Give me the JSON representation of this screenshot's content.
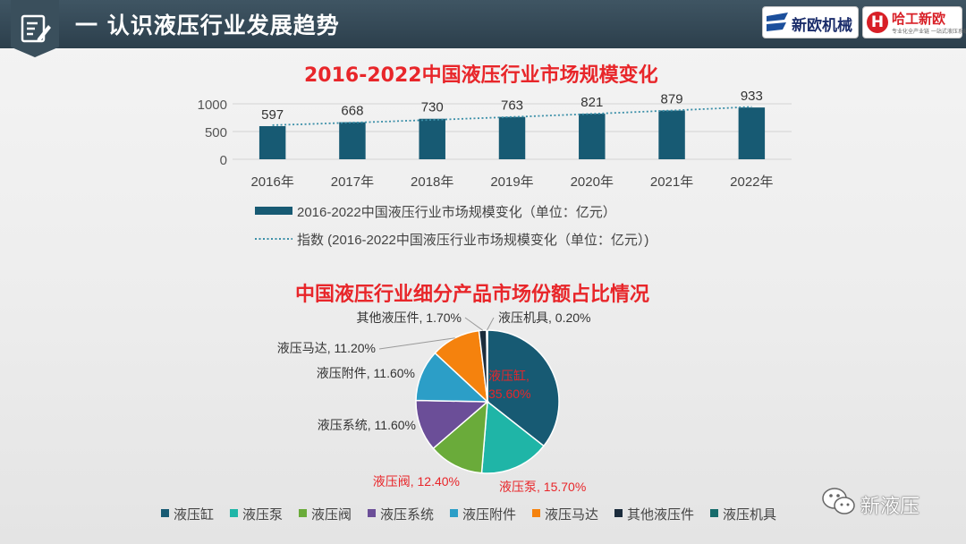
{
  "header": {
    "title": "一 认识液压行业发展趋势",
    "logos": [
      {
        "name": "新欧机械",
        "badge": ""
      },
      {
        "name": "哈工新欧",
        "badge": "H",
        "tagline": "专业化全产业链 一站式液压系统"
      }
    ]
  },
  "icons": {
    "header_icon": "edit-note-icon",
    "watermark_icon": "wechat-icon"
  },
  "watermark": {
    "text": "新液压"
  },
  "colors": {
    "header_bg": "#2f4350",
    "title_red": "#e8262a",
    "bar": "#175a73",
    "trend": "#3b8fa8"
  },
  "chart_data": [
    {
      "type": "bar",
      "title": "2016-2022中国液压行业市场规模变化",
      "categories": [
        "2016年",
        "2017年",
        "2018年",
        "2019年",
        "2020年",
        "2021年",
        "2022年"
      ],
      "series": [
        {
          "name": "2016-2022中国液压行业市场规模变化（单位：亿元）",
          "values": [
            597,
            668,
            730,
            763,
            821,
            879,
            933
          ],
          "color": "#175a73"
        }
      ],
      "trendline": {
        "name": "指数 (2016-2022中国液压行业市场规模变化（单位：亿元）)",
        "type": "exponential",
        "style": "dotted",
        "color": "#3b8fa8"
      },
      "yticks": [
        0,
        500,
        1000
      ],
      "ylim": [
        0,
        1000
      ],
      "xlabel": "",
      "ylabel": "",
      "grid": true,
      "data_labels": true,
      "legend_position": "bottom"
    },
    {
      "type": "pie",
      "title": "中国液压行业细分产品市场份额占比情况",
      "slices": [
        {
          "label": "液压缸",
          "value": 35.6,
          "text": "液压缸, 35.60%",
          "color": "#175a73",
          "label_color": "#e8262a"
        },
        {
          "label": "液压泵",
          "value": 15.7,
          "text": "液压泵, 15.70%",
          "color": "#1fb5a7",
          "label_color": "#e8262a"
        },
        {
          "label": "液压阀",
          "value": 12.4,
          "text": "液压阀, 12.40%",
          "color": "#6aab3a",
          "label_color": "#e8262a"
        },
        {
          "label": "液压系统",
          "value": 11.6,
          "text": "液压系统, 11.60%",
          "color": "#6b4e98",
          "label_color": "#333333"
        },
        {
          "label": "液压附件",
          "value": 11.6,
          "text": "液压附件, 11.60%",
          "color": "#2c9ec7",
          "label_color": "#333333"
        },
        {
          "label": "液压马达",
          "value": 11.2,
          "text": "液压马达, 11.20%",
          "color": "#f5820d",
          "label_color": "#333333"
        },
        {
          "label": "其他液压件",
          "value": 1.7,
          "text": "其他液压件, 1.70%",
          "color": "#1b2c3c",
          "label_color": "#333333"
        },
        {
          "label": "液压机具",
          "value": 0.2,
          "text": "液压机具, 0.20%",
          "color": "#166b6b",
          "label_color": "#333333"
        }
      ],
      "legend_position": "bottom"
    }
  ]
}
